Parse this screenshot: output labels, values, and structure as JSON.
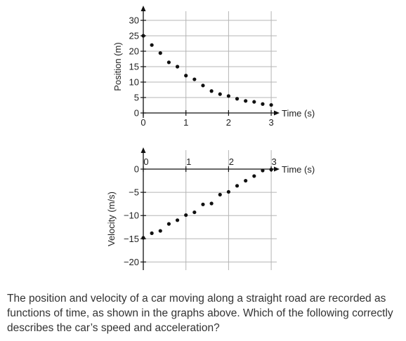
{
  "chart_data": [
    {
      "type": "scatter",
      "ylabel": "Position (m)",
      "xlabel": "Time (s)",
      "xticks": [
        0,
        1,
        2,
        3
      ],
      "yticks": [
        0,
        5,
        10,
        15,
        20,
        25,
        30
      ],
      "xlim": [
        0,
        3.1
      ],
      "ylim": [
        0,
        31
      ],
      "grid": true,
      "points": [
        {
          "x": 0.0,
          "y": 25.0
        },
        {
          "x": 0.2,
          "y": 22.0
        },
        {
          "x": 0.4,
          "y": 19.4
        },
        {
          "x": 0.6,
          "y": 16.4
        },
        {
          "x": 0.8,
          "y": 15.0
        },
        {
          "x": 1.0,
          "y": 12.1
        },
        {
          "x": 1.2,
          "y": 10.9
        },
        {
          "x": 1.4,
          "y": 8.9
        },
        {
          "x": 1.6,
          "y": 7.1
        },
        {
          "x": 1.8,
          "y": 6.1
        },
        {
          "x": 2.0,
          "y": 5.5
        },
        {
          "x": 2.2,
          "y": 4.6
        },
        {
          "x": 2.4,
          "y": 3.9
        },
        {
          "x": 2.6,
          "y": 3.6
        },
        {
          "x": 2.8,
          "y": 2.9
        },
        {
          "x": 3.0,
          "y": 2.6
        }
      ]
    },
    {
      "type": "scatter",
      "ylabel": "Velocity (m/s)",
      "xlabel": "Time (s)",
      "xticks": [
        0,
        1,
        2,
        3
      ],
      "yticks": [
        0,
        -5,
        -10,
        -15,
        -20
      ],
      "xlim": [
        0,
        3.1
      ],
      "ylim": [
        -21,
        3
      ],
      "grid": true,
      "points": [
        {
          "x": 0.0,
          "y": -14.8
        },
        {
          "x": 0.2,
          "y": -13.8
        },
        {
          "x": 0.4,
          "y": -13.3
        },
        {
          "x": 0.6,
          "y": -11.8
        },
        {
          "x": 0.8,
          "y": -11.0
        },
        {
          "x": 1.0,
          "y": -9.9
        },
        {
          "x": 1.2,
          "y": -9.3
        },
        {
          "x": 1.4,
          "y": -7.6
        },
        {
          "x": 1.6,
          "y": -7.4
        },
        {
          "x": 1.8,
          "y": -5.5
        },
        {
          "x": 2.0,
          "y": -4.9
        },
        {
          "x": 2.2,
          "y": -3.6
        },
        {
          "x": 2.4,
          "y": -2.5
        },
        {
          "x": 2.6,
          "y": -1.5
        },
        {
          "x": 2.8,
          "y": -0.3
        },
        {
          "x": 3.0,
          "y": -0.1
        }
      ]
    }
  ],
  "question": {
    "text": "The position and velocity of a car moving along a straight road are recorded as functions of time, as shown in the graphs above. Which of the following correctly describes the car’s speed and acceleration?"
  }
}
